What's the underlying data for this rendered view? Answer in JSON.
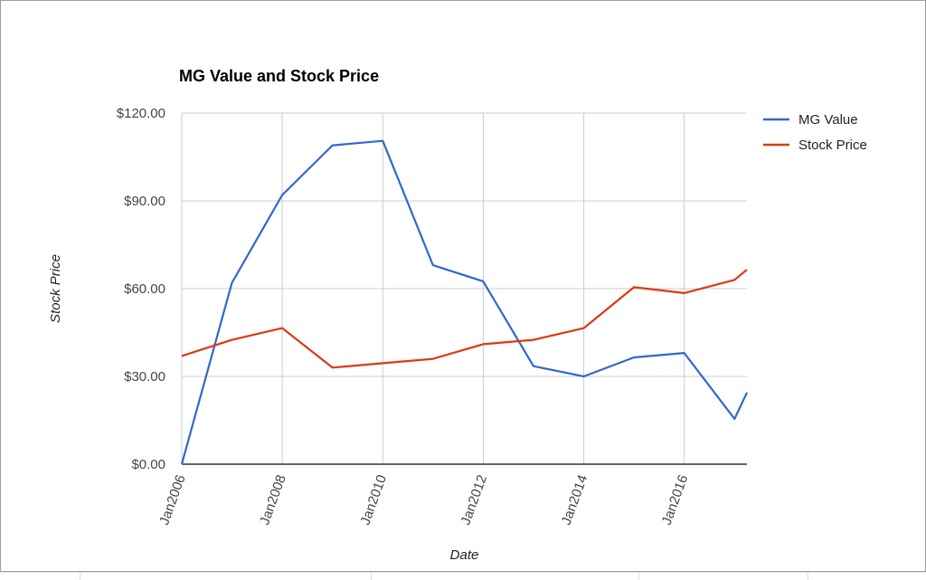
{
  "chart_data": {
    "type": "line",
    "title": "MG Value and Stock Price",
    "xlabel": "Date",
    "ylabel": "Stock Price",
    "x_tick_labels": [
      "Jan2006",
      "Jan2008",
      "Jan2010",
      "Jan2012",
      "Jan2014",
      "Jan2016"
    ],
    "x_range": [
      "2006-01-01",
      "2017-04-01"
    ],
    "y_tick_labels": [
      "$0.00",
      "$30.00",
      "$60.00",
      "$90.00",
      "$120.00"
    ],
    "ylim": [
      0,
      120
    ],
    "y_ticks": [
      0,
      30,
      60,
      90,
      120
    ],
    "grid": true,
    "legend_position": "right",
    "series": [
      {
        "name": "MG Value",
        "color": "#3366cc",
        "x": [
          "2006-01-01",
          "2007-01-01",
          "2008-01-01",
          "2009-01-01",
          "2010-01-01",
          "2011-01-01",
          "2012-01-01",
          "2013-01-01",
          "2014-01-01",
          "2015-01-01",
          "2016-01-01",
          "2017-01-01",
          "2017-04-01"
        ],
        "values": [
          0.0,
          62.0,
          92.0,
          109.0,
          110.5,
          68.0,
          62.5,
          33.5,
          30.0,
          36.5,
          38.0,
          15.5,
          24.5
        ]
      },
      {
        "name": "Stock Price",
        "color": "#dc3912",
        "x": [
          "2006-01-01",
          "2007-01-01",
          "2008-01-01",
          "2009-01-01",
          "2010-01-01",
          "2011-01-01",
          "2012-01-01",
          "2013-01-01",
          "2014-01-01",
          "2015-01-01",
          "2016-01-01",
          "2017-01-01",
          "2017-04-01"
        ],
        "values": [
          37.0,
          42.5,
          46.5,
          33.0,
          34.5,
          36.0,
          41.0,
          42.5,
          46.5,
          60.5,
          58.5,
          63.0,
          66.5
        ]
      }
    ]
  }
}
